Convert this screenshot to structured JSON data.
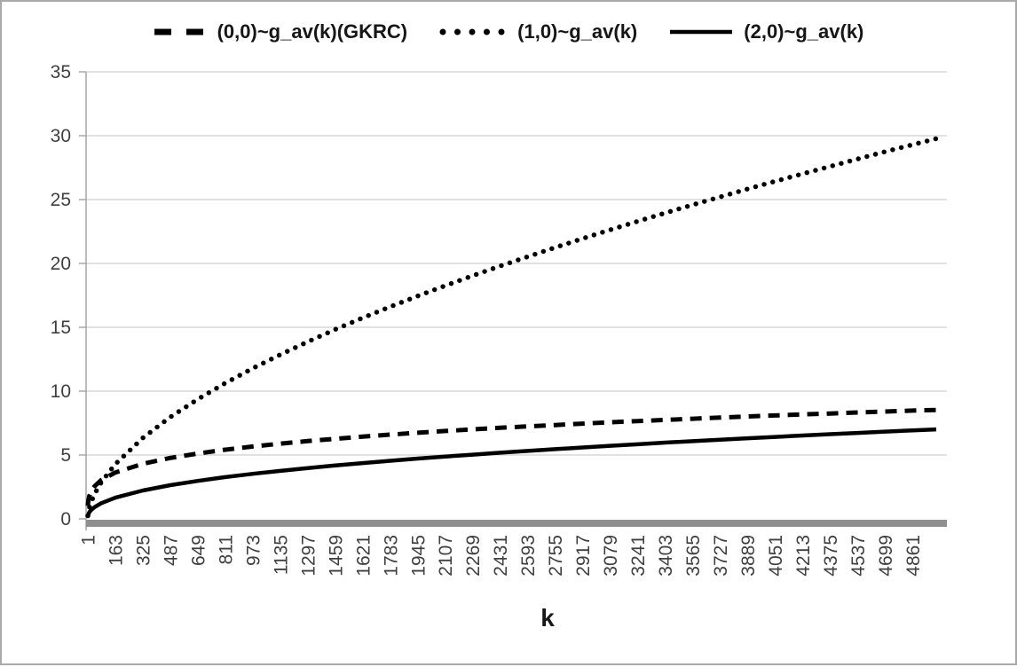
{
  "chart": {
    "xlabel": "k",
    "legend": [
      {
        "label": "(0,0)~g_av(k)(GKRC)",
        "style": "dashed"
      },
      {
        "label": "(1,0)~g_av(k)",
        "style": "dotted"
      },
      {
        "label": "(2,0)~g_av(k)",
        "style": "solid"
      }
    ]
  },
  "chart_data": {
    "type": "line",
    "title": "",
    "xlabel": "k",
    "ylabel": "",
    "xlim": [
      1,
      5000
    ],
    "ylim": [
      0,
      35
    ],
    "grid": "horizontal",
    "legend_position": "top",
    "y_ticks": [
      0,
      5,
      10,
      15,
      20,
      25,
      30,
      35
    ],
    "x_tick_labels": [
      "1",
      "163",
      "325",
      "487",
      "649",
      "811",
      "973",
      "1135",
      "1297",
      "1459",
      "1621",
      "1783",
      "1945",
      "2107",
      "2269",
      "2431",
      "2593",
      "2755",
      "2917",
      "3079",
      "3241",
      "3403",
      "3565",
      "3727",
      "3889",
      "4051",
      "4213",
      "4375",
      "4537",
      "4699",
      "4861"
    ],
    "x_tick_values": [
      1,
      163,
      325,
      487,
      649,
      811,
      973,
      1135,
      1297,
      1459,
      1621,
      1783,
      1945,
      2107,
      2269,
      2431,
      2593,
      2755,
      2917,
      3079,
      3241,
      3403,
      3565,
      3727,
      3889,
      4051,
      4213,
      4375,
      4537,
      4699,
      4861
    ],
    "x": [
      1,
      3,
      6,
      10,
      20,
      40,
      80,
      163,
      325,
      487,
      649,
      811,
      973,
      1135,
      1297,
      1459,
      1621,
      1783,
      1945,
      2107,
      2269,
      2431,
      2593,
      2755,
      2917,
      3079,
      3241,
      3403,
      3565,
      3727,
      3889,
      4051,
      4213,
      4375,
      4537,
      4699,
      4861,
      5000
    ],
    "series": [
      {
        "name": "(0,0)~g_av(k)(GKRC)",
        "style": "dashed",
        "values": [
          1.02,
          1.34,
          1.59,
          1.8,
          2.15,
          2.55,
          3.04,
          3.63,
          4.31,
          4.77,
          5.12,
          5.42,
          5.67,
          5.89,
          6.09,
          6.27,
          6.44,
          6.6,
          6.74,
          6.88,
          7.01,
          7.13,
          7.24,
          7.35,
          7.46,
          7.56,
          7.66,
          7.75,
          7.84,
          7.93,
          8.02,
          8.1,
          8.18,
          8.25,
          8.33,
          8.4,
          8.48,
          8.53
        ]
      },
      {
        "name": "(1,0)~g_av(k)",
        "style": "dotted",
        "values": [
          0.24,
          0.45,
          0.66,
          0.88,
          1.31,
          1.94,
          2.87,
          4.29,
          6.34,
          7.97,
          9.37,
          10.63,
          11.79,
          12.86,
          13.87,
          14.83,
          15.74,
          16.61,
          17.45,
          18.26,
          19.04,
          19.8,
          20.53,
          21.25,
          21.95,
          22.63,
          23.3,
          23.95,
          24.59,
          25.21,
          25.83,
          26.43,
          27.02,
          27.6,
          28.18,
          28.75,
          29.3,
          29.77
        ]
      },
      {
        "name": "(2,0)~g_av(k)",
        "style": "solid",
        "values": [
          0.2,
          0.31,
          0.42,
          0.52,
          0.69,
          0.92,
          1.23,
          1.66,
          2.22,
          2.64,
          2.97,
          3.27,
          3.53,
          3.76,
          3.98,
          4.18,
          4.37,
          4.55,
          4.72,
          4.88,
          5.03,
          5.18,
          5.32,
          5.46,
          5.59,
          5.72,
          5.84,
          5.97,
          6.08,
          6.2,
          6.31,
          6.42,
          6.53,
          6.63,
          6.73,
          6.83,
          6.93,
          7.01
        ]
      }
    ]
  },
  "colors": {
    "series": "#000000",
    "gridline": "#cfcfcf",
    "axis": "#a6a6a6",
    "axis_band": "#8f8f8f",
    "tick_text": "#3f3f3f",
    "legend_text": "#161616",
    "frame_border": "#a9a9a9",
    "background": "#ffffff"
  }
}
